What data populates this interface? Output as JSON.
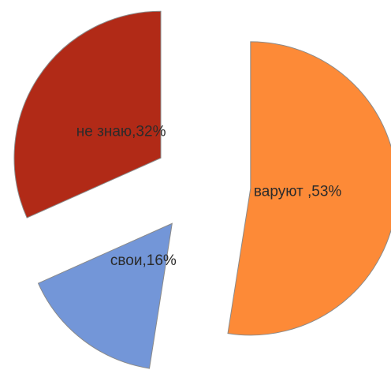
{
  "chart_data": {
    "type": "pie",
    "values": [
      53,
      16,
      32
    ],
    "value_labels": [
      "варуют ,53%",
      "свои,16%",
      "не знаю,32%"
    ],
    "colors": [
      "#fd8a37",
      "#7396d8",
      "#b12a17"
    ],
    "exploded": true
  }
}
